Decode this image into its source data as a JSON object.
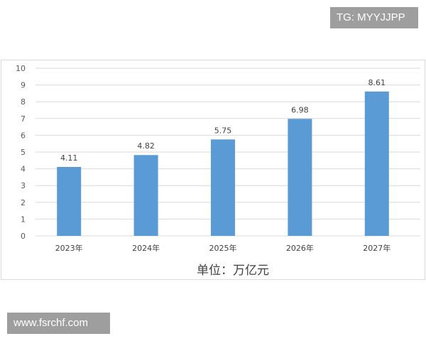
{
  "watermarks": {
    "top_right": "TG: MYYJJPP",
    "bottom_left": "www.fsrchf.com"
  },
  "chart_data": {
    "type": "bar",
    "categories": [
      "2023年",
      "2024年",
      "2025年",
      "2026年",
      "2027年"
    ],
    "values": [
      4.11,
      4.82,
      5.75,
      6.98,
      8.61
    ],
    "data_labels": [
      "4.11",
      "4.82",
      "5.75",
      "6.98",
      "8.61"
    ],
    "title": "",
    "xlabel": "单位：万亿元",
    "ylabel": "",
    "ylim": [
      0,
      10
    ],
    "yticks": [
      0,
      1,
      2,
      3,
      4,
      5,
      6,
      7,
      8,
      9,
      10
    ],
    "grid": true,
    "legend": "none",
    "bar_color": "#5b9bd5",
    "grid_color": "#d9d9d9"
  }
}
